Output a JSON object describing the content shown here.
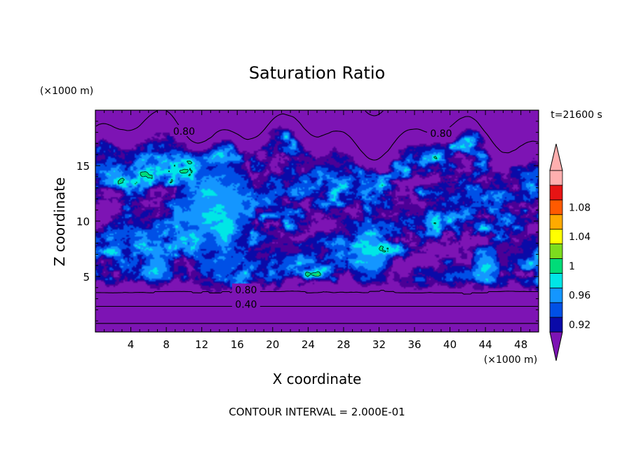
{
  "chart_data": {
    "type": "heatmap",
    "title": "Saturation Ratio",
    "xlabel": "X coordinate",
    "ylabel": "Z coordinate",
    "x_unit": "(×1000 m)",
    "y_unit": "(×1000 m)",
    "time_label": "t=21600 s",
    "footer": "CONTOUR INTERVAL = 2.000E-01",
    "xlim": [
      0,
      50
    ],
    "ylim": [
      0,
      20
    ],
    "x_ticks": [
      "4",
      "8",
      "12",
      "16",
      "20",
      "24",
      "28",
      "32",
      "36",
      "40",
      "44",
      "48"
    ],
    "x_tick_values": [
      4,
      8,
      12,
      16,
      20,
      24,
      28,
      32,
      36,
      40,
      44,
      48
    ],
    "y_ticks": [
      "5",
      "10",
      "15"
    ],
    "y_tick_values": [
      5,
      10,
      15
    ],
    "contour_labels": [
      {
        "text": "0.80",
        "x": 10,
        "z": 18.1
      },
      {
        "text": "0.80",
        "x": 39,
        "z": 17.9
      },
      {
        "text": "0.80",
        "x": 17,
        "z": 3.8
      },
      {
        "text": "0.40",
        "x": 17,
        "z": 2.5
      }
    ],
    "colorbar": {
      "labels": [
        "1.08",
        "1.04",
        "1",
        "0.96",
        "0.92"
      ],
      "label_values": [
        1.08,
        1.04,
        1.0,
        0.96,
        0.92
      ],
      "levels": [
        0.9,
        0.92,
        0.94,
        0.96,
        0.98,
        1.0,
        1.02,
        1.04,
        1.06,
        1.08,
        1.1
      ],
      "colors": [
        "#4b0096",
        "#0a0aa8",
        "#0050e6",
        "#1496ff",
        "#00e6e6",
        "#00dc78",
        "#7ddc1e",
        "#ffff00",
        "#ffaa00",
        "#ff5a00",
        "#e61414",
        "#ffafaf"
      ],
      "under_color": "#7d14b4",
      "over_color": "#ffafaf"
    }
  }
}
